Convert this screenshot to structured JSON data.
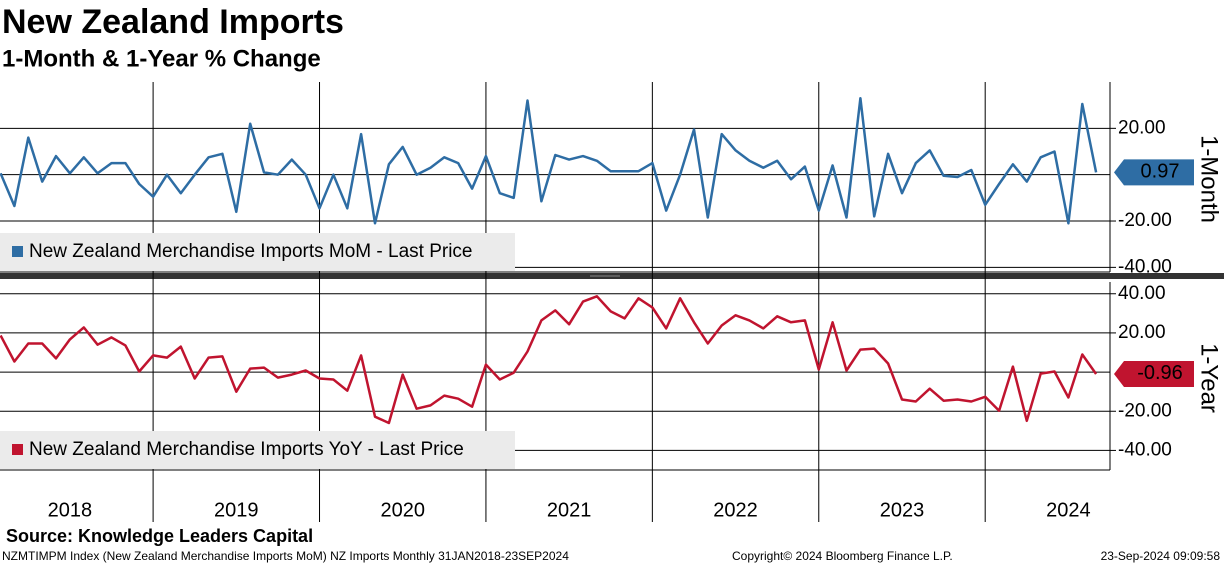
{
  "header": {
    "title": "New Zealand Imports",
    "subtitle": "1-Month & 1-Year % Change"
  },
  "chart_data": [
    {
      "type": "line",
      "axis_title": "1-Month",
      "x": [
        "2018-01",
        "2018-02",
        "2018-03",
        "2018-04",
        "2018-05",
        "2018-06",
        "2018-07",
        "2018-08",
        "2018-09",
        "2018-10",
        "2018-11",
        "2018-12",
        "2019-01",
        "2019-02",
        "2019-03",
        "2019-04",
        "2019-05",
        "2019-06",
        "2019-07",
        "2019-08",
        "2019-09",
        "2019-10",
        "2019-11",
        "2019-12",
        "2020-01",
        "2020-02",
        "2020-03",
        "2020-04",
        "2020-05",
        "2020-06",
        "2020-07",
        "2020-08",
        "2020-09",
        "2020-10",
        "2020-11",
        "2020-12",
        "2021-01",
        "2021-02",
        "2021-03",
        "2021-04",
        "2021-05",
        "2021-06",
        "2021-07",
        "2021-08",
        "2021-09",
        "2021-10",
        "2021-11",
        "2021-12",
        "2022-01",
        "2022-02",
        "2022-03",
        "2022-04",
        "2022-05",
        "2022-06",
        "2022-07",
        "2022-08",
        "2022-09",
        "2022-10",
        "2022-11",
        "2022-12",
        "2023-01",
        "2023-02",
        "2023-03",
        "2023-04",
        "2023-05",
        "2023-06",
        "2023-07",
        "2023-08",
        "2023-09",
        "2023-10",
        "2023-11",
        "2023-12",
        "2024-01",
        "2024-02",
        "2024-03",
        "2024-04",
        "2024-05",
        "2024-06",
        "2024-07",
        "2024-08"
      ],
      "series": [
        {
          "name": "New Zealand Merchandise Imports MoM - Last Price",
          "color": "#2e6da4",
          "values": [
            0.6,
            -13.5,
            16,
            -3,
            8,
            0.6,
            7.5,
            0.6,
            5,
            5,
            -4,
            -9.5,
            0,
            -8,
            0,
            7.5,
            9,
            -16,
            22,
            1,
            0,
            6.5,
            0,
            -14.5,
            0,
            -14.5,
            17.5,
            -21,
            4.5,
            12,
            0,
            3,
            7.5,
            5,
            -6,
            8,
            -8,
            -10,
            32,
            -11.5,
            8.5,
            6.5,
            8,
            6,
            1.5,
            1.5,
            1.5,
            5,
            -15.5,
            0,
            19.5,
            -18.5,
            17.5,
            10.5,
            6,
            3,
            6,
            -2,
            3.5,
            -15.5,
            4,
            -18.5,
            33,
            -18,
            9,
            -8,
            5,
            10.5,
            -0.5,
            -1,
            2,
            -13,
            -4,
            4.5,
            -3,
            7.5,
            10,
            -21,
            30.5,
            0.97
          ]
        }
      ],
      "xlim": [
        2018.08,
        2024.75
      ],
      "xticks": [
        2019,
        2020,
        2021,
        2022,
        2023,
        2024
      ],
      "year_labels": [
        2018,
        2019,
        2020,
        2021,
        2022,
        2023,
        2024
      ],
      "ylim": [
        -42,
        40
      ],
      "zero_line": 0,
      "yticks": [
        {
          "value": -40,
          "label": "-40.00"
        },
        {
          "value": -20,
          "label": "-20.00"
        },
        {
          "value": 20,
          "label": "20.00"
        }
      ],
      "grid": true
    },
    {
      "type": "line",
      "axis_title": "1-Year",
      "x": [
        "2018-01",
        "2018-02",
        "2018-03",
        "2018-04",
        "2018-05",
        "2018-06",
        "2018-07",
        "2018-08",
        "2018-09",
        "2018-10",
        "2018-11",
        "2018-12",
        "2019-01",
        "2019-02",
        "2019-03",
        "2019-04",
        "2019-05",
        "2019-06",
        "2019-07",
        "2019-08",
        "2019-09",
        "2019-10",
        "2019-11",
        "2019-12",
        "2020-01",
        "2020-02",
        "2020-03",
        "2020-04",
        "2020-05",
        "2020-06",
        "2020-07",
        "2020-08",
        "2020-09",
        "2020-10",
        "2020-11",
        "2020-12",
        "2021-01",
        "2021-02",
        "2021-03",
        "2021-04",
        "2021-05",
        "2021-06",
        "2021-07",
        "2021-08",
        "2021-09",
        "2021-10",
        "2021-11",
        "2021-12",
        "2022-01",
        "2022-02",
        "2022-03",
        "2022-04",
        "2022-05",
        "2022-06",
        "2022-07",
        "2022-08",
        "2022-09",
        "2022-10",
        "2022-11",
        "2022-12",
        "2023-01",
        "2023-02",
        "2023-03",
        "2023-04",
        "2023-05",
        "2023-06",
        "2023-07",
        "2023-08",
        "2023-09",
        "2023-10",
        "2023-11",
        "2023-12",
        "2024-01",
        "2024-02",
        "2024-03",
        "2024-04",
        "2024-05",
        "2024-06",
        "2024-07",
        "2024-08"
      ],
      "series": [
        {
          "name": "New Zealand Merchandise Imports YoY - Last Price",
          "color": "#c0142f",
          "values": [
            18.7,
            5.4,
            14.6,
            14.6,
            7,
            16.7,
            22.8,
            14,
            17.7,
            13.6,
            0.3,
            8.5,
            7.4,
            13,
            -3.3,
            7.4,
            8,
            -10,
            1.8,
            2.3,
            -2.8,
            -1.3,
            0.8,
            -3.3,
            -3.8,
            -9.5,
            8.5,
            -22.8,
            -26,
            -1.3,
            -18.7,
            -17,
            -12,
            -13.6,
            -17.7,
            3.8,
            -3.8,
            -0.3,
            10.5,
            26.4,
            31.5,
            24.4,
            36,
            38.7,
            31,
            27.4,
            37.7,
            33,
            22.3,
            37.7,
            25.4,
            14.6,
            23.8,
            29,
            26.4,
            22.3,
            28.5,
            25.4,
            26.4,
            1.3,
            25.4,
            0.8,
            11.5,
            12,
            4.4,
            -14,
            -15,
            -8.5,
            -14.6,
            -14,
            -15,
            -12.6,
            -19.7,
            2.8,
            -24.9,
            -0.8,
            0.3,
            -13,
            9,
            -0.96
          ]
        }
      ],
      "xlim": [
        2018.08,
        2024.75
      ],
      "xticks": [
        2019,
        2020,
        2021,
        2022,
        2023,
        2024
      ],
      "ylim": [
        -50,
        46
      ],
      "zero_line": 0,
      "yticks": [
        {
          "value": -40,
          "label": "-40.00"
        },
        {
          "value": -20,
          "label": "-20.00"
        },
        {
          "value": 20,
          "label": "20.00"
        },
        {
          "value": 40,
          "label": "40.00"
        }
      ],
      "grid": true
    }
  ],
  "footer": {
    "source": "Source: Knowledge Leaders Capital",
    "description": "NZMTIMPM Index (New Zealand Merchandise Imports MoM) NZ Imports  Monthly 31JAN2018-23SEP2024",
    "copyright": "Copyright© 2024 Bloomberg Finance L.P.",
    "timestamp": "23-Sep-2024 09:09:58"
  }
}
